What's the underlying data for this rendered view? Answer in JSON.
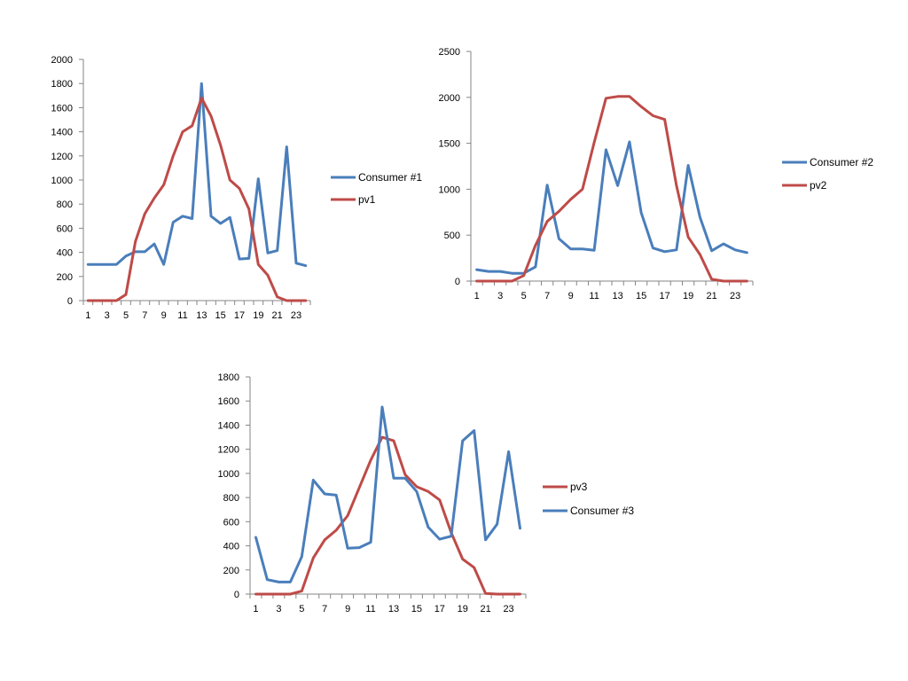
{
  "colors": {
    "consumer": "#4A7EBB",
    "pv": "#BE4B48"
  },
  "chart_data": [
    {
      "type": "line",
      "title": "",
      "xlabel": "",
      "ylabel": "",
      "x": [
        1,
        2,
        3,
        4,
        5,
        6,
        7,
        8,
        9,
        10,
        11,
        12,
        13,
        14,
        15,
        16,
        17,
        18,
        19,
        20,
        21,
        22,
        23,
        24
      ],
      "x_tick_labels": [
        "1",
        "3",
        "5",
        "7",
        "9",
        "11",
        "13",
        "15",
        "17",
        "19",
        "21",
        "23"
      ],
      "y_ticks": [
        0,
        200,
        400,
        600,
        800,
        1000,
        1200,
        1400,
        1600,
        1800,
        2000
      ],
      "ylim": [
        0,
        2000
      ],
      "grid": false,
      "legend_position": "right",
      "series": [
        {
          "name": "Consumer #1",
          "color_key": "consumer",
          "values": [
            300,
            300,
            300,
            300,
            370,
            405,
            405,
            470,
            300,
            650,
            700,
            680,
            1800,
            700,
            640,
            690,
            345,
            350,
            1010,
            395,
            415,
            1275,
            310,
            290
          ]
        },
        {
          "name": "pv1",
          "color_key": "pv",
          "values": [
            0,
            0,
            0,
            0,
            50,
            490,
            720,
            850,
            960,
            1200,
            1400,
            1450,
            1680,
            1530,
            1290,
            1000,
            930,
            760,
            300,
            210,
            30,
            0,
            0,
            0
          ]
        }
      ]
    },
    {
      "type": "line",
      "title": "",
      "xlabel": "",
      "ylabel": "",
      "x": [
        1,
        2,
        3,
        4,
        5,
        6,
        7,
        8,
        9,
        10,
        11,
        12,
        13,
        14,
        15,
        16,
        17,
        18,
        19,
        20,
        21,
        22,
        23,
        24
      ],
      "x_tick_labels": [
        "1",
        "3",
        "5",
        "7",
        "9",
        "11",
        "13",
        "15",
        "17",
        "19",
        "21",
        "23"
      ],
      "y_ticks": [
        0,
        500,
        1000,
        1500,
        2000,
        2500
      ],
      "ylim": [
        0,
        2500
      ],
      "grid": false,
      "legend_position": "right",
      "series": [
        {
          "name": "Consumer #2",
          "color_key": "consumer",
          "values": [
            125,
            105,
            105,
            85,
            85,
            155,
            1045,
            460,
            350,
            350,
            335,
            1430,
            1040,
            1515,
            745,
            360,
            320,
            340,
            1260,
            695,
            330,
            405,
            340,
            310
          ]
        },
        {
          "name": "pv2",
          "color_key": "pv",
          "values": [
            0,
            0,
            0,
            0,
            60,
            390,
            650,
            760,
            890,
            1000,
            1510,
            1990,
            2010,
            2010,
            1900,
            1800,
            1760,
            1040,
            480,
            290,
            20,
            0,
            0,
            0
          ]
        }
      ]
    },
    {
      "type": "line",
      "title": "",
      "xlabel": "",
      "ylabel": "",
      "x": [
        1,
        2,
        3,
        4,
        5,
        6,
        7,
        8,
        9,
        10,
        11,
        12,
        13,
        14,
        15,
        16,
        17,
        18,
        19,
        20,
        21,
        22,
        23,
        24
      ],
      "x_tick_labels": [
        "1",
        "3",
        "5",
        "7",
        "9",
        "11",
        "13",
        "15",
        "17",
        "19",
        "21",
        "23"
      ],
      "y_ticks": [
        0,
        200,
        400,
        600,
        800,
        1000,
        1200,
        1400,
        1600,
        1800
      ],
      "ylim": [
        0,
        1800
      ],
      "grid": false,
      "legend_position": "right",
      "series": [
        {
          "name": "pv3",
          "color_key": "pv",
          "values": [
            0,
            0,
            0,
            0,
            25,
            300,
            450,
            530,
            650,
            880,
            1110,
            1300,
            1270,
            990,
            890,
            850,
            780,
            510,
            290,
            220,
            5,
            0,
            0,
            0
          ]
        },
        {
          "name": "Consumer #3",
          "color_key": "consumer",
          "values": [
            470,
            120,
            100,
            100,
            310,
            945,
            830,
            820,
            380,
            385,
            430,
            1550,
            960,
            960,
            850,
            555,
            455,
            480,
            1270,
            1355,
            450,
            580,
            1180,
            545
          ]
        }
      ]
    }
  ]
}
